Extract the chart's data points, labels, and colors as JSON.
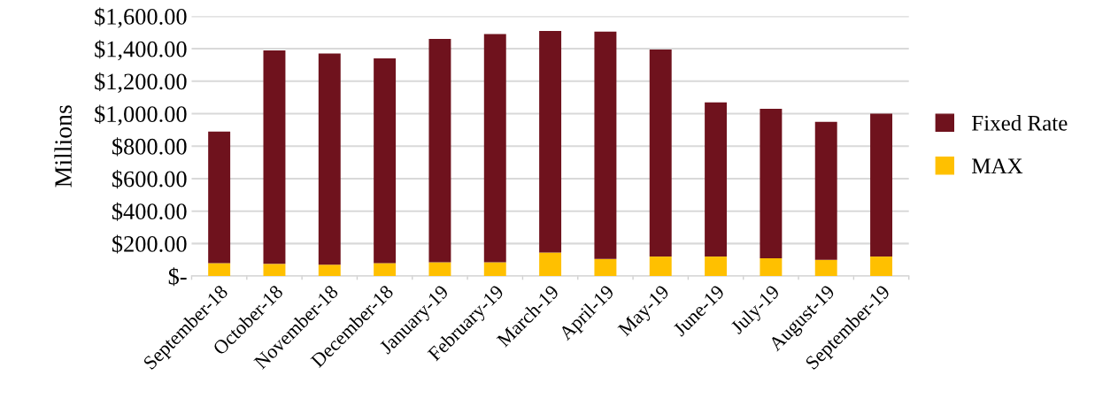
{
  "chart_data": {
    "type": "bar",
    "stacked": true,
    "ylabel": "Millions",
    "categories": [
      "September-18",
      "October-18",
      "November-18",
      "December-18",
      "January-19",
      "February-19",
      "March-19",
      "April-19",
      "May-19",
      "June-19",
      "July-19",
      "August-19",
      "September-19"
    ],
    "series": [
      {
        "name": "MAX",
        "color": "#ffc000",
        "values": [
          80,
          75,
          70,
          80,
          85,
          85,
          145,
          105,
          120,
          120,
          110,
          100,
          120
        ]
      },
      {
        "name": "Fixed Rate",
        "color": "#6f121d",
        "values": [
          810,
          1315,
          1300,
          1260,
          1375,
          1405,
          1365,
          1400,
          1275,
          950,
          920,
          850,
          880
        ]
      }
    ],
    "ylim": [
      0,
      1600
    ],
    "yticks": [
      {
        "value": 0,
        "label": "$-"
      },
      {
        "value": 200,
        "label": "$200.00"
      },
      {
        "value": 400,
        "label": "$400.00"
      },
      {
        "value": 600,
        "label": "$600.00"
      },
      {
        "value": 800,
        "label": "$800.00"
      },
      {
        "value": 1000,
        "label": "$1,000.00"
      },
      {
        "value": 1200,
        "label": "$1,200.00"
      },
      {
        "value": 1400,
        "label": "$1,400.00"
      },
      {
        "value": 1600,
        "label": "$1,600.00"
      }
    ],
    "grid": "y",
    "legend": "right"
  }
}
